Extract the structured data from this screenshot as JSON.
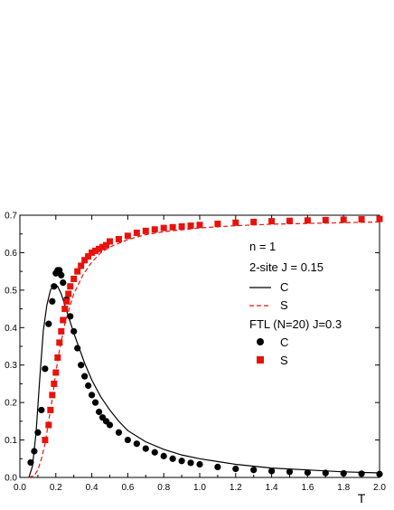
{
  "chart_data": {
    "type": "line",
    "xlabel": "T",
    "xlim": [
      0.0,
      2.0
    ],
    "ylim": [
      0.0,
      0.7
    ],
    "x_ticks": [
      "0.0",
      "0.2",
      "0.4",
      "0.6",
      "0.8",
      "1.0",
      "1.2",
      "1.4",
      "1.6",
      "1.8",
      "2.0"
    ],
    "y_ticks": [
      "0.0",
      "0.1",
      "0.2",
      "0.3",
      "0.4",
      "0.5",
      "0.6",
      "0.7"
    ],
    "grid": false,
    "legend": {
      "placement": "right",
      "lines": [
        "n = 1",
        "2-site J = 0.15",
        "C",
        "S",
        "FTL (N=20) J=0.3",
        "C",
        "S"
      ]
    },
    "series": [
      {
        "name": "C",
        "group": "2-site J = 0.15",
        "style": "solid-line",
        "color": "#000000",
        "x": [
          0.05,
          0.07,
          0.09,
          0.11,
          0.13,
          0.15,
          0.17,
          0.19,
          0.21,
          0.23,
          0.25,
          0.27,
          0.3,
          0.33,
          0.36,
          0.4,
          0.45,
          0.5,
          0.55,
          0.6,
          0.7,
          0.8,
          0.9,
          1.0,
          1.2,
          1.4,
          1.6,
          1.8,
          2.0
        ],
        "y": [
          0.0,
          0.03,
          0.12,
          0.26,
          0.39,
          0.46,
          0.5,
          0.515,
          0.51,
          0.49,
          0.46,
          0.43,
          0.385,
          0.345,
          0.305,
          0.26,
          0.215,
          0.18,
          0.15,
          0.125,
          0.095,
          0.075,
          0.06,
          0.05,
          0.035,
          0.025,
          0.02,
          0.015,
          0.012
        ]
      },
      {
        "name": "S",
        "group": "2-site J = 0.15",
        "style": "dashed-line",
        "color": "#e8120c",
        "x": [
          0.05,
          0.08,
          0.1,
          0.12,
          0.14,
          0.16,
          0.18,
          0.2,
          0.22,
          0.25,
          0.28,
          0.3,
          0.35,
          0.4,
          0.45,
          0.5,
          0.6,
          0.7,
          0.8,
          1.0,
          1.2,
          1.4,
          1.6,
          1.8,
          2.0
        ],
        "y": [
          0.0,
          0.005,
          0.02,
          0.05,
          0.09,
          0.15,
          0.21,
          0.28,
          0.34,
          0.41,
          0.46,
          0.49,
          0.54,
          0.575,
          0.6,
          0.615,
          0.635,
          0.648,
          0.656,
          0.666,
          0.672,
          0.676,
          0.678,
          0.68,
          0.682
        ]
      },
      {
        "name": "C",
        "group": "FTL (N=20) J=0.3",
        "style": "circle-markers",
        "color": "#000000",
        "x": [
          0.06,
          0.08,
          0.1,
          0.12,
          0.14,
          0.16,
          0.18,
          0.19,
          0.2,
          0.21,
          0.22,
          0.23,
          0.24,
          0.26,
          0.28,
          0.3,
          0.32,
          0.34,
          0.36,
          0.38,
          0.4,
          0.42,
          0.44,
          0.46,
          0.48,
          0.5,
          0.55,
          0.6,
          0.65,
          0.7,
          0.75,
          0.8,
          0.85,
          0.9,
          0.95,
          1.0,
          1.1,
          1.2,
          1.3,
          1.4,
          1.5,
          1.6,
          1.7,
          1.8,
          1.9,
          2.0
        ],
        "y": [
          0.04,
          0.07,
          0.12,
          0.18,
          0.29,
          0.41,
          0.47,
          0.51,
          0.545,
          0.553,
          0.553,
          0.54,
          0.52,
          0.475,
          0.43,
          0.39,
          0.345,
          0.3,
          0.27,
          0.245,
          0.22,
          0.2,
          0.175,
          0.16,
          0.15,
          0.14,
          0.12,
          0.1,
          0.09,
          0.077,
          0.067,
          0.057,
          0.05,
          0.044,
          0.039,
          0.035,
          0.028,
          0.023,
          0.02,
          0.017,
          0.015,
          0.013,
          0.012,
          0.011,
          0.01,
          0.009
        ]
      },
      {
        "name": "S",
        "group": "FTL (N=20) J=0.3",
        "style": "square-markers",
        "color": "#e8120c",
        "x": [
          0.14,
          0.16,
          0.17,
          0.18,
          0.19,
          0.2,
          0.21,
          0.22,
          0.23,
          0.24,
          0.25,
          0.26,
          0.27,
          0.28,
          0.3,
          0.32,
          0.34,
          0.36,
          0.38,
          0.4,
          0.42,
          0.44,
          0.46,
          0.48,
          0.5,
          0.55,
          0.6,
          0.65,
          0.7,
          0.75,
          0.8,
          0.85,
          0.9,
          0.95,
          1.0,
          1.1,
          1.2,
          1.3,
          1.4,
          1.5,
          1.6,
          1.7,
          1.8,
          1.9,
          2.0
        ],
        "y": [
          0.1,
          0.14,
          0.18,
          0.22,
          0.25,
          0.28,
          0.32,
          0.36,
          0.39,
          0.42,
          0.45,
          0.47,
          0.49,
          0.51,
          0.53,
          0.55,
          0.565,
          0.58,
          0.59,
          0.6,
          0.605,
          0.61,
          0.615,
          0.62,
          0.63,
          0.636,
          0.645,
          0.653,
          0.658,
          0.662,
          0.666,
          0.668,
          0.67,
          0.672,
          0.674,
          0.677,
          0.68,
          0.682,
          0.684,
          0.685,
          0.686,
          0.687,
          0.688,
          0.689,
          0.69
        ]
      }
    ]
  }
}
